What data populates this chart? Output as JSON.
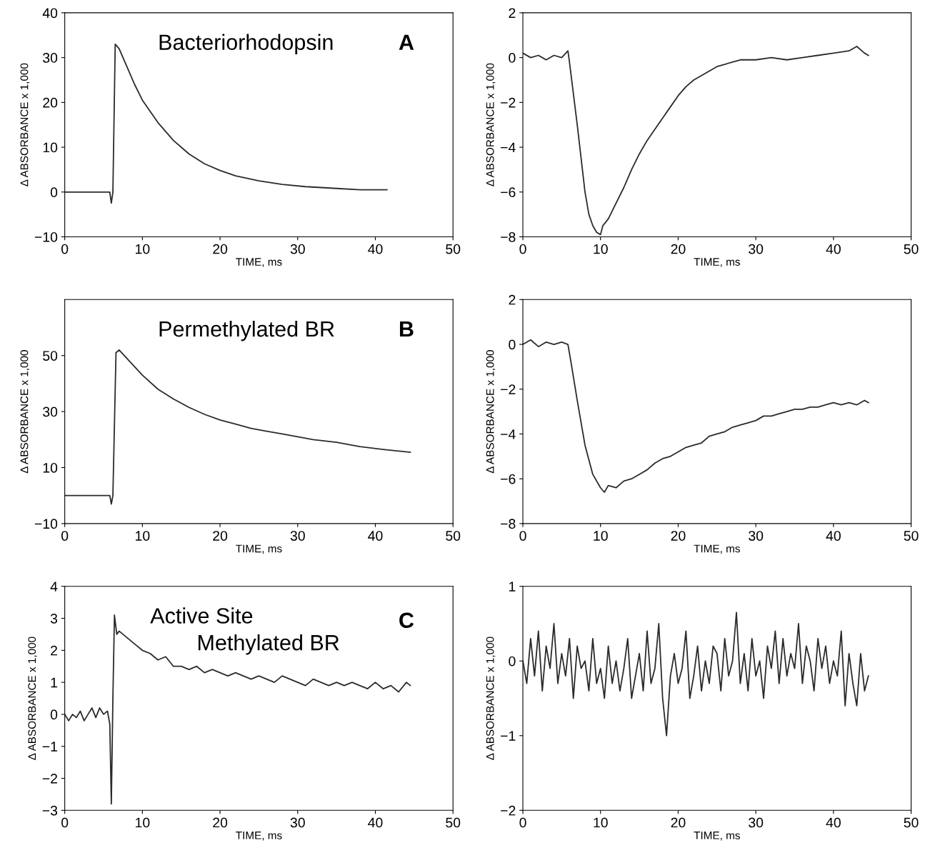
{
  "chart_data": [
    {
      "type": "line",
      "xlabel": "TIME, ms",
      "ylabel": "Δ ABSORBANCE x 1,000",
      "xlim": [
        0,
        50
      ],
      "ylim": [
        -10,
        40
      ],
      "xticks": [
        0,
        10,
        20,
        30,
        40,
        50
      ],
      "yticks": [
        -10,
        0,
        10,
        20,
        30,
        40
      ],
      "annotations": [
        "Bacteriorhodopsin",
        "A"
      ],
      "series": [
        {
          "color": "#2b2b2b",
          "x": [
            0,
            2,
            4,
            5.8,
            6.0,
            6.2,
            6.5,
            7,
            8,
            9,
            10,
            12,
            14,
            16,
            18,
            20,
            22,
            25,
            28,
            31,
            35,
            38,
            41.5
          ],
          "values": [
            0,
            0,
            0,
            0,
            -2.5,
            0,
            33,
            32,
            28,
            24,
            20.5,
            15.5,
            11.5,
            8.5,
            6.3,
            4.8,
            3.6,
            2.5,
            1.7,
            1.2,
            0.8,
            0.5,
            0.5
          ]
        }
      ]
    },
    {
      "type": "line",
      "xlabel": "TIME, ms",
      "ylabel": "Δ ABSORBANCE x 1,000",
      "xlim": [
        0,
        50
      ],
      "ylim": [
        -8,
        2
      ],
      "xticks": [
        0,
        10,
        20,
        30,
        40,
        50
      ],
      "yticks": [
        -8,
        -6,
        -4,
        -2,
        0,
        2
      ],
      "series": [
        {
          "color": "#2b2b2b",
          "x": [
            0,
            1,
            2,
            3,
            4,
            5,
            5.8,
            6,
            7,
            8,
            8.5,
            9,
            9.5,
            10,
            10.3,
            11,
            12,
            13,
            14,
            15,
            16,
            17,
            18,
            19,
            20,
            21,
            22,
            23,
            24,
            25,
            26,
            27,
            28,
            30,
            32,
            34,
            36,
            38,
            40,
            42,
            43,
            44,
            44.5
          ],
          "values": [
            0.2,
            0,
            0.1,
            -0.1,
            0.1,
            0,
            0.3,
            -0.2,
            -3,
            -6,
            -7,
            -7.5,
            -7.8,
            -7.9,
            -7.5,
            -7.2,
            -6.5,
            -5.8,
            -5,
            -4.3,
            -3.7,
            -3.2,
            -2.7,
            -2.2,
            -1.7,
            -1.3,
            -1.0,
            -0.8,
            -0.6,
            -0.4,
            -0.3,
            -0.2,
            -0.1,
            -0.1,
            0,
            -0.1,
            0,
            0.1,
            0.2,
            0.3,
            0.5,
            0.2,
            0.1
          ]
        }
      ]
    },
    {
      "type": "line",
      "xlabel": "TIME, ms",
      "ylabel": "Δ ABSORBANCE x 1,000",
      "xlim": [
        0,
        50
      ],
      "ylim": [
        -10,
        70
      ],
      "xticks": [
        0,
        10,
        20,
        30,
        40,
        50
      ],
      "yticks": [
        -10,
        10,
        30,
        50
      ],
      "annotations": [
        "Permethylated BR",
        "B"
      ],
      "series": [
        {
          "color": "#2b2b2b",
          "x": [
            0,
            2,
            4,
            5.8,
            6,
            6.2,
            6.6,
            7,
            8,
            9,
            10,
            12,
            14,
            16,
            18,
            20,
            22,
            24,
            26,
            28,
            30,
            32,
            35,
            38,
            41,
            44.5
          ],
          "values": [
            0,
            0,
            0,
            0,
            -3,
            0,
            51,
            52,
            49,
            46,
            43,
            38,
            34.5,
            31.5,
            29,
            27,
            25.5,
            24,
            23,
            22,
            21,
            20,
            19,
            17.5,
            16.5,
            15.5
          ]
        }
      ]
    },
    {
      "type": "line",
      "xlabel": "TIME, ms",
      "ylabel": "Δ ABSORBANCE x 1,000",
      "xlim": [
        0,
        50
      ],
      "ylim": [
        -8,
        2
      ],
      "xticks": [
        0,
        10,
        20,
        30,
        40,
        50
      ],
      "yticks": [
        -8,
        -6,
        -4,
        -2,
        0,
        2
      ],
      "series": [
        {
          "color": "#2b2b2b",
          "x": [
            0,
            1,
            2,
            3,
            4,
            5,
            5.8,
            6.2,
            7,
            8,
            9,
            10,
            10.5,
            11,
            12,
            13,
            14,
            15,
            16,
            17,
            18,
            19,
            20,
            21,
            22,
            23,
            24,
            25,
            26,
            27,
            28,
            29,
            30,
            31,
            32,
            33,
            34,
            35,
            36,
            37,
            38,
            39,
            40,
            41,
            42,
            43,
            44,
            44.5
          ],
          "values": [
            0,
            0.2,
            -0.1,
            0.1,
            0,
            0.1,
            0,
            -0.8,
            -2.5,
            -4.5,
            -5.8,
            -6.4,
            -6.6,
            -6.3,
            -6.4,
            -6.1,
            -6.0,
            -5.8,
            -5.6,
            -5.3,
            -5.1,
            -5.0,
            -4.8,
            -4.6,
            -4.5,
            -4.4,
            -4.1,
            -4.0,
            -3.9,
            -3.7,
            -3.6,
            -3.5,
            -3.4,
            -3.2,
            -3.2,
            -3.1,
            -3.0,
            -2.9,
            -2.9,
            -2.8,
            -2.8,
            -2.7,
            -2.6,
            -2.7,
            -2.6,
            -2.7,
            -2.5,
            -2.6
          ]
        }
      ]
    },
    {
      "type": "line",
      "xlabel": "TIME, ms",
      "ylabel": "Δ ABSORBANCE x 1,000",
      "xlim": [
        0,
        50
      ],
      "ylim": [
        -3,
        4
      ],
      "xticks": [
        0,
        10,
        20,
        30,
        40,
        50
      ],
      "yticks": [
        -3,
        -2,
        -1,
        0,
        1,
        2,
        3,
        4
      ],
      "annotations": [
        "Active Site",
        "Methylated BR",
        "C"
      ],
      "series": [
        {
          "color": "#2b2b2b",
          "x": [
            0,
            0.5,
            1,
            1.5,
            2,
            2.5,
            3,
            3.5,
            4,
            4.5,
            5,
            5.5,
            5.8,
            6,
            6.2,
            6.4,
            6.7,
            7,
            8,
            9,
            10,
            11,
            12,
            13,
            14,
            15,
            16,
            17,
            18,
            19,
            20,
            21,
            22,
            23,
            24,
            25,
            26,
            27,
            28,
            29,
            30,
            31,
            32,
            33,
            34,
            35,
            36,
            37,
            38,
            39,
            40,
            41,
            42,
            43,
            44,
            44.5
          ],
          "values": [
            0,
            -0.2,
            0,
            -0.1,
            0.1,
            -0.2,
            0,
            0.2,
            -0.1,
            0.2,
            0,
            0.1,
            -0.3,
            -2.8,
            0.5,
            3.1,
            2.5,
            2.6,
            2.4,
            2.2,
            2.0,
            1.9,
            1.7,
            1.8,
            1.5,
            1.5,
            1.4,
            1.5,
            1.3,
            1.4,
            1.3,
            1.2,
            1.3,
            1.2,
            1.1,
            1.2,
            1.1,
            1.0,
            1.2,
            1.1,
            1.0,
            0.9,
            1.1,
            1.0,
            0.9,
            1.0,
            0.9,
            1.0,
            0.9,
            0.8,
            1.0,
            0.8,
            0.9,
            0.7,
            1.0,
            0.9
          ]
        }
      ]
    },
    {
      "type": "line",
      "xlabel": "TIME, ms",
      "ylabel": "Δ ABSORBANCE x 1,000",
      "xlim": [
        0,
        50
      ],
      "ylim": [
        -2,
        1
      ],
      "xticks": [
        0,
        10,
        20,
        30,
        40,
        50
      ],
      "yticks": [
        -2,
        -1,
        0,
        1
      ],
      "series": [
        {
          "color": "#2b2b2b",
          "x": [
            0,
            0.5,
            1,
            1.5,
            2,
            2.5,
            3,
            3.5,
            4,
            4.5,
            5,
            5.5,
            6,
            6.5,
            7,
            7.5,
            8,
            8.5,
            9,
            9.5,
            10,
            10.5,
            11,
            11.5,
            12,
            12.5,
            13,
            13.5,
            14,
            14.5,
            15,
            15.5,
            16,
            16.5,
            17,
            17.5,
            18,
            18.5,
            19,
            19.5,
            20,
            20.5,
            21,
            21.5,
            22,
            22.5,
            23,
            23.5,
            24,
            24.5,
            25,
            25.5,
            26,
            26.5,
            27,
            27.5,
            28,
            28.5,
            29,
            29.5,
            30,
            30.5,
            31,
            31.5,
            32,
            32.5,
            33,
            33.5,
            34,
            34.5,
            35,
            35.5,
            36,
            36.5,
            37,
            37.5,
            38,
            38.5,
            39,
            39.5,
            40,
            40.5,
            41,
            41.5,
            42,
            42.5,
            43,
            43.5,
            44,
            44.5
          ],
          "values": [
            0.0,
            -0.3,
            0.3,
            -0.2,
            0.4,
            -0.4,
            0.2,
            -0.1,
            0.5,
            -0.3,
            0.1,
            -0.2,
            0.3,
            -0.5,
            0.2,
            -0.1,
            0.0,
            -0.4,
            0.3,
            -0.3,
            -0.1,
            -0.5,
            0.2,
            -0.3,
            0.0,
            -0.4,
            -0.1,
            0.3,
            -0.5,
            -0.2,
            0.1,
            -0.4,
            0.4,
            -0.3,
            -0.1,
            0.5,
            -0.5,
            -1.0,
            -0.2,
            0.1,
            -0.3,
            -0.1,
            0.4,
            -0.5,
            -0.2,
            0.2,
            -0.4,
            0.0,
            -0.3,
            0.2,
            0.1,
            -0.4,
            0.3,
            -0.2,
            0.0,
            0.65,
            -0.3,
            0.1,
            -0.4,
            0.3,
            -0.2,
            0.0,
            -0.5,
            0.2,
            -0.1,
            0.4,
            -0.3,
            0.3,
            -0.2,
            0.1,
            -0.1,
            0.5,
            -0.3,
            0.2,
            0.0,
            -0.4,
            0.3,
            -0.1,
            0.2,
            -0.3,
            0.0,
            -0.2,
            0.4,
            -0.6,
            0.1,
            -0.3,
            -0.6,
            0.1,
            -0.4,
            -0.2
          ]
        }
      ]
    }
  ]
}
